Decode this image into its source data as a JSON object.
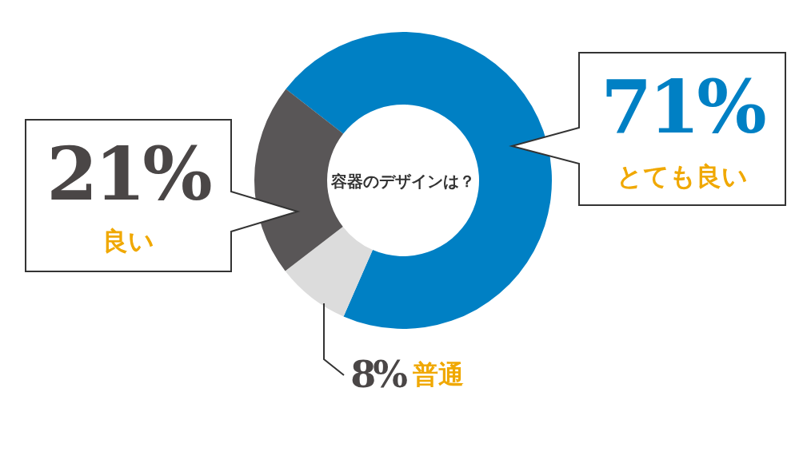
{
  "chart_data": {
    "type": "donut",
    "title": "容器のデザインは？",
    "categories": [
      "とても良い",
      "普通",
      "良い"
    ],
    "values": [
      71,
      8,
      21
    ],
    "colors": [
      "#0080c4",
      "#dcdcdc",
      "#595657"
    ],
    "value_labels": [
      "71%",
      "8%",
      "21%"
    ]
  }
}
